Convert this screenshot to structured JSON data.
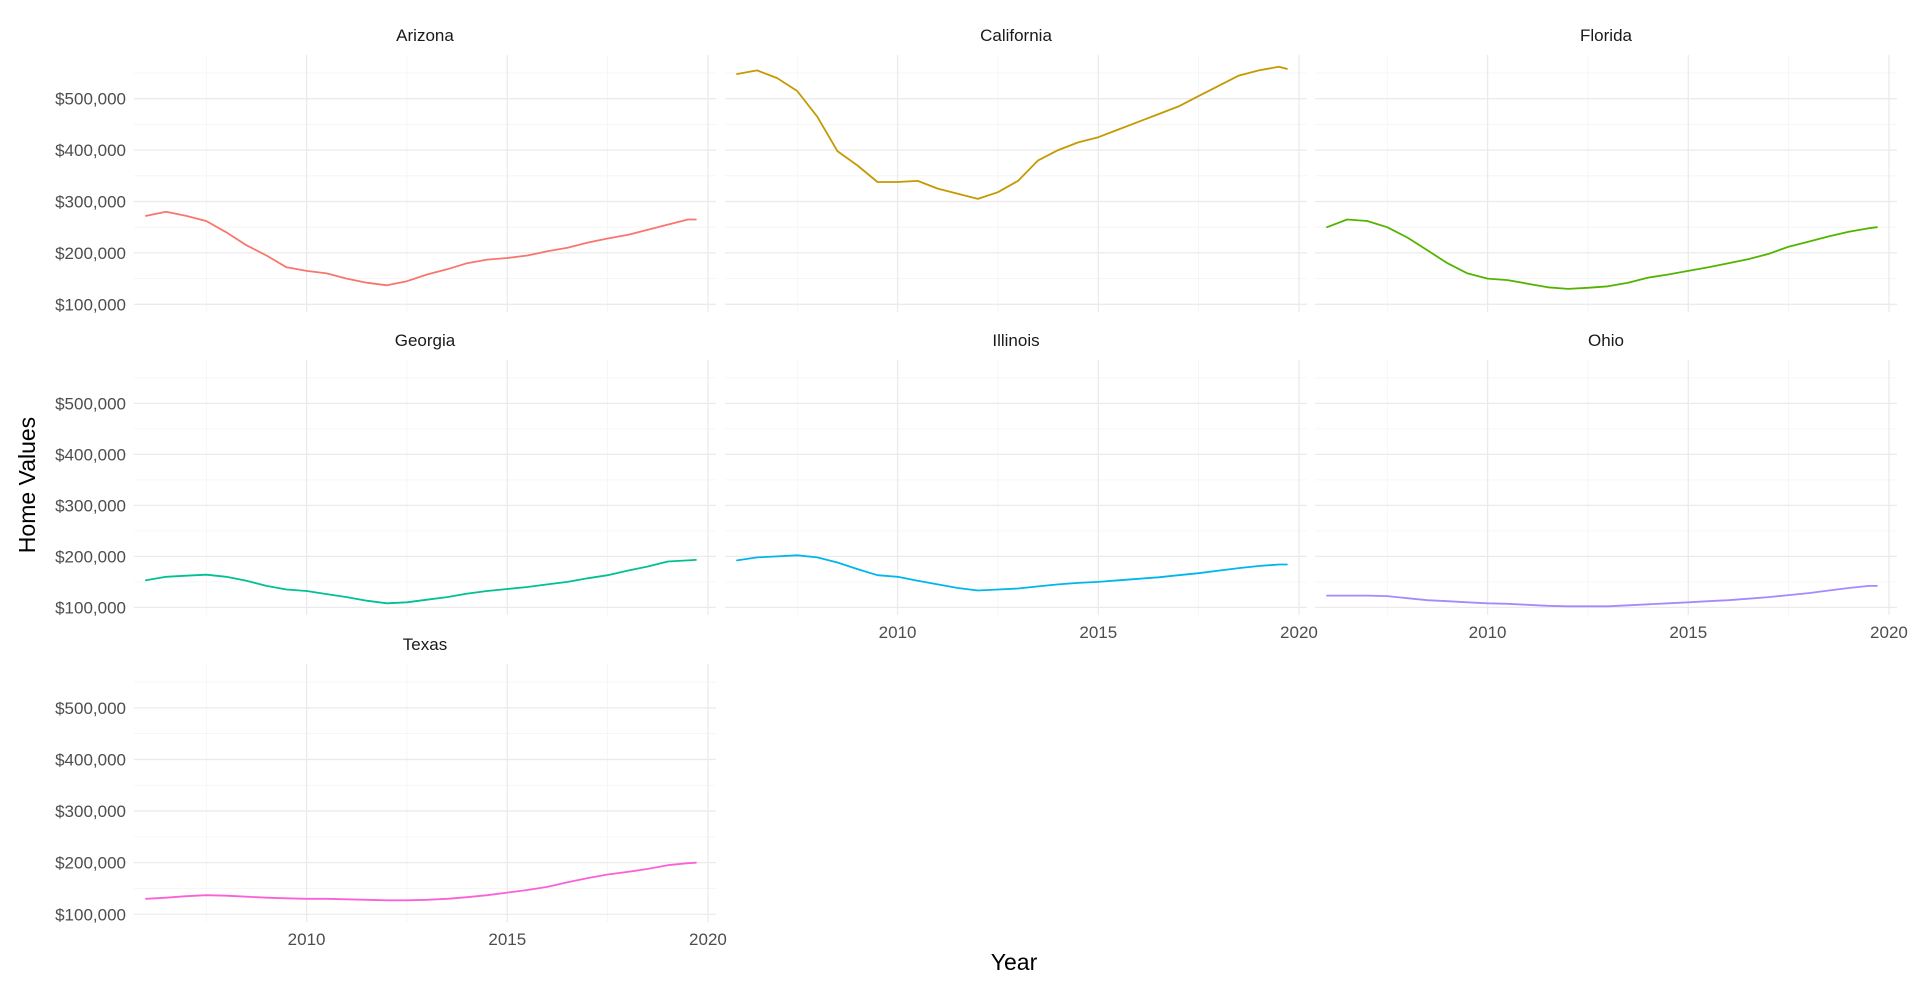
{
  "chart_data": {
    "type": "line",
    "layout": "facet_wrap",
    "xlabel": "Year",
    "ylabel": "Home Values",
    "xlim": [
      2005.7,
      2020.2
    ],
    "ylim": [
      85000,
      585000
    ],
    "x_ticks": [
      2010,
      2015,
      2020
    ],
    "y_ticks": [
      100000,
      200000,
      300000,
      400000,
      500000
    ],
    "y_tick_labels": [
      "$100,000",
      "$200,000",
      "$300,000",
      "$400,000",
      "$500,000"
    ],
    "x_tick_labels": [
      "2010",
      "2015",
      "2020"
    ],
    "grid": true,
    "legend": "none",
    "panels": [
      {
        "name": "Arizona",
        "color": "#F8766D",
        "x": [
          2006.0,
          2006.5,
          2007.0,
          2007.5,
          2008.0,
          2008.5,
          2009.0,
          2009.5,
          2010.0,
          2010.5,
          2011.0,
          2011.5,
          2012.0,
          2012.5,
          2013.0,
          2013.5,
          2014.0,
          2014.5,
          2015.0,
          2015.5,
          2016.0,
          2016.5,
          2017.0,
          2017.5,
          2018.0,
          2018.5,
          2019.0,
          2019.5,
          2019.7
        ],
        "values": [
          272000,
          280000,
          272000,
          262000,
          240000,
          215000,
          195000,
          172000,
          165000,
          160000,
          150000,
          142000,
          137000,
          145000,
          158000,
          168000,
          180000,
          187000,
          190000,
          195000,
          203000,
          210000,
          220000,
          228000,
          235000,
          245000,
          255000,
          265000,
          265000
        ]
      },
      {
        "name": "California",
        "color": "#C49A00",
        "x": [
          2006.0,
          2006.5,
          2007.0,
          2007.5,
          2008.0,
          2008.5,
          2009.0,
          2009.5,
          2010.0,
          2010.5,
          2011.0,
          2011.5,
          2012.0,
          2012.5,
          2013.0,
          2013.5,
          2014.0,
          2014.5,
          2015.0,
          2015.5,
          2016.0,
          2016.5,
          2017.0,
          2017.5,
          2018.0,
          2018.5,
          2019.0,
          2019.5,
          2019.7
        ],
        "values": [
          548000,
          555000,
          540000,
          515000,
          465000,
          398000,
          370000,
          338000,
          338000,
          340000,
          325000,
          315000,
          305000,
          318000,
          340000,
          380000,
          400000,
          415000,
          425000,
          440000,
          455000,
          470000,
          485000,
          505000,
          525000,
          545000,
          555000,
          562000,
          558000
        ]
      },
      {
        "name": "Florida",
        "color": "#53B400",
        "x": [
          2006.0,
          2006.5,
          2007.0,
          2007.5,
          2008.0,
          2008.5,
          2009.0,
          2009.5,
          2010.0,
          2010.5,
          2011.0,
          2011.5,
          2012.0,
          2012.5,
          2013.0,
          2013.5,
          2014.0,
          2014.5,
          2015.0,
          2015.5,
          2016.0,
          2016.5,
          2017.0,
          2017.5,
          2018.0,
          2018.5,
          2019.0,
          2019.5,
          2019.7
        ],
        "values": [
          250000,
          265000,
          262000,
          250000,
          230000,
          205000,
          180000,
          160000,
          150000,
          147000,
          140000,
          133000,
          130000,
          132000,
          135000,
          142000,
          152000,
          158000,
          165000,
          172000,
          180000,
          188000,
          198000,
          212000,
          222000,
          232000,
          241000,
          248000,
          250000
        ]
      },
      {
        "name": "Georgia",
        "color": "#00C094",
        "x": [
          2006.0,
          2006.5,
          2007.0,
          2007.5,
          2008.0,
          2008.5,
          2009.0,
          2009.5,
          2010.0,
          2010.5,
          2011.0,
          2011.5,
          2012.0,
          2012.5,
          2013.0,
          2013.5,
          2014.0,
          2014.5,
          2015.0,
          2015.5,
          2016.0,
          2016.5,
          2017.0,
          2017.5,
          2018.0,
          2018.5,
          2019.0,
          2019.5,
          2019.7
        ],
        "values": [
          153000,
          160000,
          162000,
          164000,
          160000,
          152000,
          142000,
          135000,
          132000,
          126000,
          120000,
          113000,
          108000,
          110000,
          115000,
          120000,
          127000,
          132000,
          136000,
          140000,
          145000,
          150000,
          157000,
          163000,
          172000,
          180000,
          190000,
          192000,
          193000
        ]
      },
      {
        "name": "Illinois",
        "color": "#00B6EB",
        "x": [
          2006.0,
          2006.5,
          2007.0,
          2007.5,
          2008.0,
          2008.5,
          2009.0,
          2009.5,
          2010.0,
          2010.5,
          2011.0,
          2011.5,
          2012.0,
          2012.5,
          2013.0,
          2013.5,
          2014.0,
          2014.5,
          2015.0,
          2015.5,
          2016.0,
          2016.5,
          2017.0,
          2017.5,
          2018.0,
          2018.5,
          2019.0,
          2019.5,
          2019.7
        ],
        "values": [
          192000,
          198000,
          200000,
          202000,
          198000,
          188000,
          175000,
          163000,
          160000,
          152000,
          145000,
          138000,
          133000,
          135000,
          137000,
          141000,
          145000,
          148000,
          150000,
          153000,
          156000,
          159000,
          163000,
          167000,
          172000,
          177000,
          181000,
          184000,
          184000
        ]
      },
      {
        "name": "Ohio",
        "color": "#A58AFF",
        "x": [
          2006.0,
          2006.5,
          2007.0,
          2007.5,
          2008.0,
          2008.5,
          2009.0,
          2009.5,
          2010.0,
          2010.5,
          2011.0,
          2011.5,
          2012.0,
          2012.5,
          2013.0,
          2013.5,
          2014.0,
          2014.5,
          2015.0,
          2015.5,
          2016.0,
          2016.5,
          2017.0,
          2017.5,
          2018.0,
          2018.5,
          2019.0,
          2019.5,
          2019.7
        ],
        "values": [
          123000,
          123000,
          123000,
          122000,
          118000,
          114000,
          112000,
          110000,
          108000,
          107000,
          105000,
          103000,
          102000,
          102000,
          102000,
          104000,
          106000,
          108000,
          110000,
          112000,
          114000,
          117000,
          120000,
          124000,
          128000,
          133000,
          138000,
          142000,
          142000
        ]
      },
      {
        "name": "Texas",
        "color": "#FB61D7",
        "x": [
          2006.0,
          2006.5,
          2007.0,
          2007.5,
          2008.0,
          2008.5,
          2009.0,
          2009.5,
          2010.0,
          2010.5,
          2011.0,
          2011.5,
          2012.0,
          2012.5,
          2013.0,
          2013.5,
          2014.0,
          2014.5,
          2015.0,
          2015.5,
          2016.0,
          2016.5,
          2017.0,
          2017.5,
          2018.0,
          2018.5,
          2019.0,
          2019.5,
          2019.7
        ],
        "values": [
          130000,
          132000,
          135000,
          137000,
          136000,
          134000,
          132000,
          131000,
          130000,
          130000,
          129000,
          128000,
          127000,
          127000,
          128000,
          130000,
          133000,
          137000,
          142000,
          147000,
          153000,
          162000,
          170000,
          177000,
          182000,
          188000,
          195000,
          199000,
          200000
        ]
      }
    ]
  }
}
